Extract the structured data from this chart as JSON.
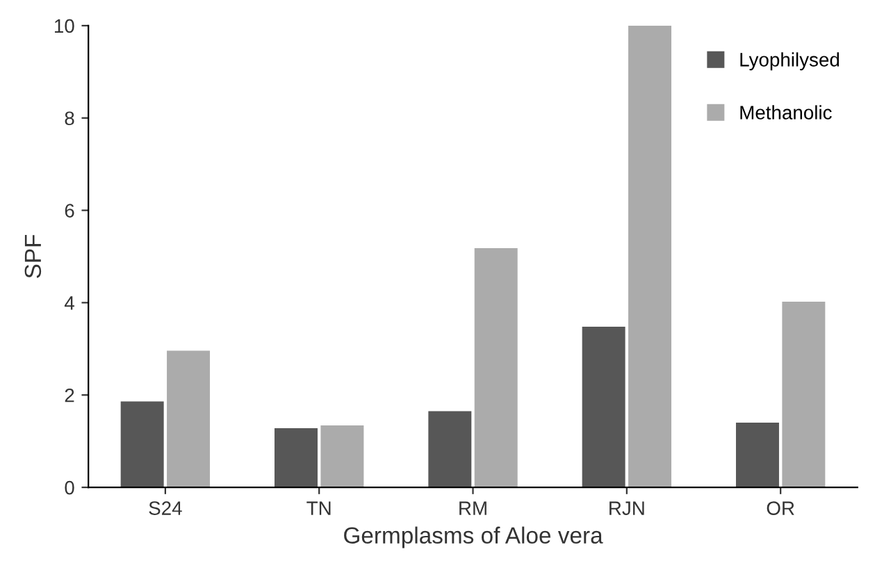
{
  "chart_data": {
    "type": "bar",
    "xlabel": "Germplasms of Aloe vera",
    "ylabel": "SPF",
    "categories": [
      "S24",
      "TN",
      "RM",
      "RJN",
      "OR"
    ],
    "series": [
      {
        "name": "Lyophilysed",
        "color": "#575757",
        "values": [
          1.86,
          1.28,
          1.65,
          3.48,
          1.4
        ]
      },
      {
        "name": "Methanolic",
        "color": "#ababab",
        "values": [
          2.96,
          1.34,
          5.18,
          10.0,
          4.02
        ]
      }
    ],
    "ylim": [
      0,
      10
    ],
    "yticks": [
      0,
      2,
      4,
      6,
      8,
      10
    ],
    "grid": false,
    "legend": "top right"
  }
}
